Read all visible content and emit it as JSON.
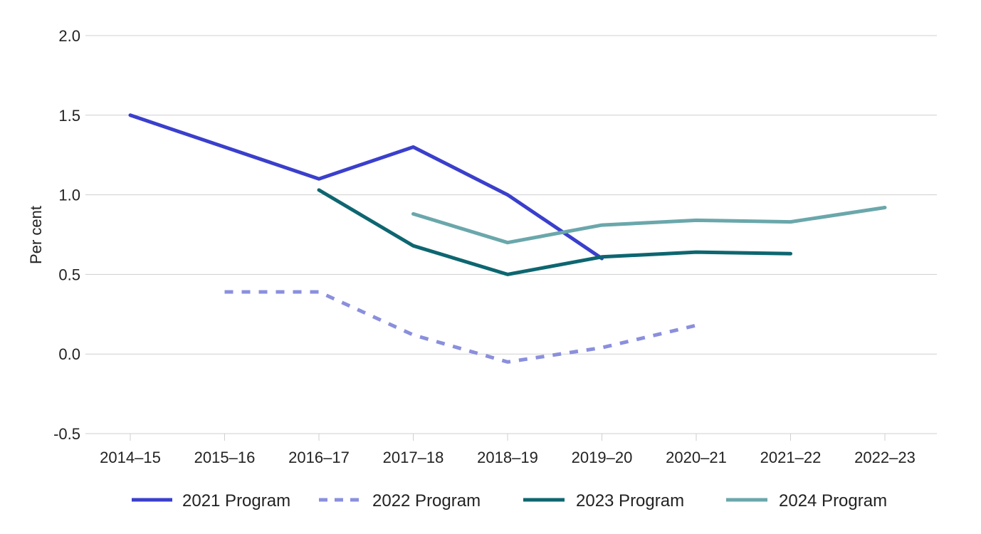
{
  "chart_data": {
    "type": "line",
    "title": "",
    "xlabel": "",
    "ylabel": "Per cent",
    "ylim": [
      -0.5,
      2.0
    ],
    "yticks": [
      "2.0",
      "1.5",
      "1.0",
      "0.5",
      "0.0",
      "-0.5"
    ],
    "categories": [
      "2014–15",
      "2015–16",
      "2016–17",
      "2017–18",
      "2018–19",
      "2019–20",
      "2020–21",
      "2021–22",
      "2022–23"
    ],
    "grid": true,
    "legend_position": "bottom",
    "series": [
      {
        "name": "2021 Program",
        "color": "#3a3fcc",
        "dash": "solid",
        "values": [
          1.5,
          1.3,
          1.1,
          1.3,
          1.0,
          0.6,
          null,
          null,
          null
        ]
      },
      {
        "name": "2022 Program",
        "color": "#8a8fdd",
        "dash": "dashed",
        "values": [
          null,
          0.39,
          0.39,
          0.12,
          -0.05,
          0.04,
          0.18,
          null,
          null
        ]
      },
      {
        "name": "2023 Program",
        "color": "#0d6670",
        "dash": "solid",
        "values": [
          null,
          null,
          1.03,
          0.68,
          0.5,
          0.61,
          0.64,
          0.63,
          null
        ]
      },
      {
        "name": "2024 Program",
        "color": "#6aa7ab",
        "dash": "solid",
        "values": [
          null,
          null,
          null,
          0.88,
          0.7,
          0.81,
          0.84,
          0.83,
          0.92
        ]
      }
    ]
  }
}
